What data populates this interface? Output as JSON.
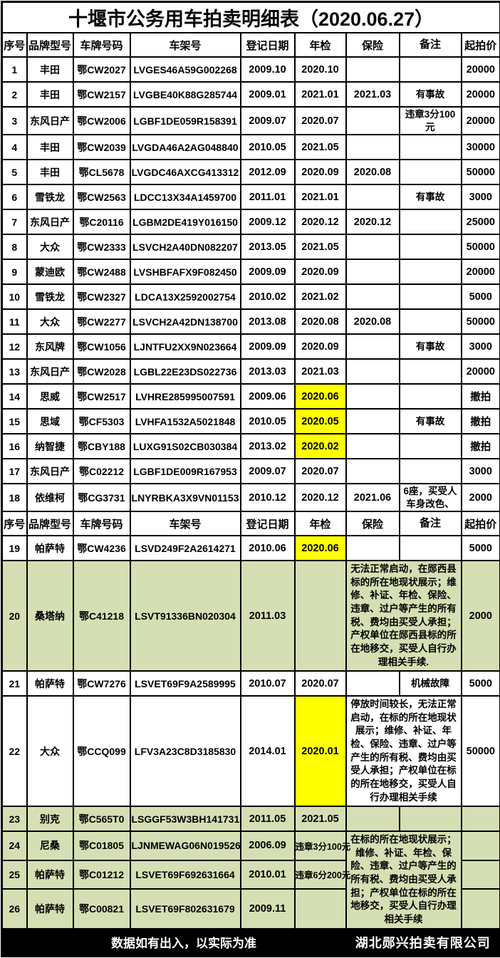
{
  "title": "十堰市公务用车拍卖明细表（2020.06.27）",
  "columns": [
    "序号",
    "品牌型号",
    "车牌号码",
    "车架号",
    "登记日期",
    "年检",
    "保险",
    "备注",
    "起拍价"
  ],
  "colors": {
    "highlight_yellow": "#ffff00",
    "row_green": "#d5dfb3",
    "footer_bg": "#000000",
    "footer_text": "#ffffff"
  },
  "rows": [
    {
      "no": "1",
      "brand": "丰田",
      "plate": "鄂CW2027",
      "vin": "LVGES46A59G002268",
      "reg": "2009.10",
      "insp": "2020.10",
      "ins": "",
      "note": "",
      "price": "20000"
    },
    {
      "no": "2",
      "brand": "丰田",
      "plate": "鄂CW2157",
      "vin": "LVGBE40K88G285744",
      "reg": "2009.01",
      "insp": "2021.01",
      "ins": "2021.03",
      "note": "有事故",
      "price": "20000"
    },
    {
      "no": "3",
      "brand": "东风日产",
      "plate": "鄂CW2006",
      "vin": "LGBF1DE059R158391",
      "reg": "2009.07",
      "insp": "2020.07",
      "ins": "",
      "note": "违章3分100元",
      "price": "20000"
    },
    {
      "no": "4",
      "brand": "丰田",
      "plate": "鄂CW2039",
      "vin": "LVGDA46A2AG048840",
      "reg": "2010.05",
      "insp": "2021.05",
      "ins": "",
      "note": "",
      "price": "30000"
    },
    {
      "no": "5",
      "brand": "丰田",
      "plate": "鄂CL5678",
      "vin": "LVGDC46AXCG413312",
      "reg": "2012.09",
      "insp": "2020.09",
      "ins": "2020.08",
      "note": "",
      "price": "50000"
    },
    {
      "no": "6",
      "brand": "雪铁龙",
      "plate": "鄂CW2563",
      "vin": "LDCC13X34A1459700",
      "reg": "2011.01",
      "insp": "2021.01",
      "ins": "",
      "note": "有事故",
      "price": "3000"
    },
    {
      "no": "7",
      "brand": "东风日产",
      "plate": "鄂C20116",
      "vin": "LGBM2DE419Y016150",
      "reg": "2009.12",
      "insp": "2020.12",
      "ins": "2020.12",
      "note": "",
      "price": "25000"
    },
    {
      "no": "8",
      "brand": "大众",
      "plate": "鄂CW2333",
      "vin": "LSVCH2A40DN082207",
      "reg": "2013.05",
      "insp": "2021.05",
      "ins": "",
      "note": "",
      "price": "50000"
    },
    {
      "no": "9",
      "brand": "蒙迪欧",
      "plate": "鄂CW2488",
      "vin": "LVSHBFAFX9F082450",
      "reg": "2009.09",
      "insp": "2020.09",
      "ins": "",
      "note": "",
      "price": "20000"
    },
    {
      "no": "10",
      "brand": "雪铁龙",
      "plate": "鄂CW2327",
      "vin": "LDCA13X2592002754",
      "reg": "2010.02",
      "insp": "2021.02",
      "ins": "",
      "note": "",
      "price": "5000"
    },
    {
      "no": "11",
      "brand": "大众",
      "plate": "鄂CW2277",
      "vin": "LSVCH2A42DN138700",
      "reg": "2013.08",
      "insp": "2020.08",
      "ins": "2020.08",
      "note": "",
      "price": "50000"
    },
    {
      "no": "12",
      "brand": "东风牌",
      "plate": "鄂CW1056",
      "vin": "LJNTFU2XX9N023664",
      "reg": "2009.09",
      "insp": "2020.09",
      "ins": "",
      "note": "有事故",
      "price": "3000"
    },
    {
      "no": "13",
      "brand": "东风日产",
      "plate": "鄂CW2028",
      "vin": "LGBL22E23DS022736",
      "reg": "2013.03",
      "insp": "2021.03",
      "ins": "",
      "note": "",
      "price": "20000"
    },
    {
      "no": "14",
      "brand": "思威",
      "plate": "鄂CW2517",
      "vin": "LVHRE285995007591",
      "reg": "2009.06",
      "insp": "2020.06",
      "insp_hl": true,
      "ins": "",
      "note": "",
      "price": "撤拍"
    },
    {
      "no": "15",
      "brand": "思域",
      "plate": "鄂CF5303",
      "vin": "LVHFA1532A5021848",
      "reg": "2010.05",
      "insp": "2020.05",
      "insp_hl": true,
      "ins": "",
      "note": "有事故",
      "price": "撤拍"
    },
    {
      "no": "16",
      "brand": "纳智捷",
      "plate": "鄂CBY188",
      "vin": "LUXG91S02CB030384",
      "reg": "2013.02",
      "insp": "2020.02",
      "insp_hl": true,
      "ins": "",
      "note": "",
      "price": "撤拍"
    },
    {
      "no": "17",
      "brand": "东风日产",
      "plate": "鄂C02212",
      "vin": "LGBF1DE009R167953",
      "reg": "2009.07",
      "insp": "2020.07",
      "ins": "",
      "note": "",
      "price": "3000"
    },
    {
      "no": "18",
      "brand": "依维柯",
      "plate": "鄂CG3731",
      "vin": "LNYRBKA3X9VN01153",
      "reg": "2010.12",
      "insp": "2020.12",
      "ins": "2021.06",
      "note": "6座，买受人车身改色、",
      "price": "2000"
    },
    {
      "header": true
    },
    {
      "no": "19",
      "brand": "帕萨特",
      "plate": "鄂CW4236",
      "vin": "LSVD249F2A2614271",
      "reg": "2010.06",
      "insp": "2020.06",
      "insp_hl": true,
      "ins": "",
      "note": "",
      "price": "5000"
    },
    {
      "no": "20",
      "brand": "桑塔纳",
      "plate": "鄂C41218",
      "vin": "LSVT91336BN020304",
      "reg": "2011.03",
      "insp": "",
      "green": true,
      "note_span": "merge",
      "note": "无法正常启动，在郧西县标的所在地现状展示；维修、补证、年检、保险、违章、过户等产生的所有税、费均由买受人承担；产权单位在郧西县标的所在地移交，买受人自行办理相关手续.",
      "price": "2000"
    },
    {
      "no": "21",
      "brand": "帕萨特",
      "plate": "鄂CW7276",
      "vin": "LSVET69F9A2589995",
      "reg": "2010.07",
      "insp": "2020.07",
      "ins": "",
      "note": "机械故障",
      "price": "5000"
    },
    {
      "no": "22",
      "brand": "大众",
      "plate": "鄂CCQ099",
      "vin": "LFV3A23C8D3185830",
      "reg": "2014.01",
      "insp": "2020.01",
      "insp_hl": true,
      "note_span": "merge",
      "note": "停放时间较长，无法正常启动，在标的所在地现状展示；维修、补证、年检、保险、违章、过户等产生的所有税、费均由买受人承担；产权单位在标的所在地移交，买受人自行办理相关手续",
      "price": "50000"
    },
    {
      "no": "23",
      "brand": "别克",
      "plate": "鄂C565T0",
      "vin": "LSGGF53W3BH141731",
      "reg": "2011.05",
      "insp": "2021.05",
      "green": true,
      "ins": "",
      "note": "",
      "price": ""
    },
    {
      "no": "24",
      "brand": "尼桑",
      "plate": "鄂C01805",
      "vin": "LJNMEWAG06N019526",
      "reg": "2006.09",
      "insp": "违章3分100元",
      "insp_ovf": true,
      "green": true,
      "note_span": "merge3",
      "note": "在标的所在地现状展示；维修、补证、年检、保险、违章、过户等产生的所有税、费均由买受人承担；产权单位在标的所在地移交，买受人自行办理相关手续",
      "price": ""
    },
    {
      "no": "25",
      "brand": "帕萨特",
      "plate": "鄂C01212",
      "vin": "LSVET69F692631664",
      "reg": "2010.01",
      "insp": "违章6分200元",
      "insp_ovf": true,
      "green": true,
      "note_span": "none",
      "price": ""
    },
    {
      "no": "26",
      "brand": "帕萨特",
      "plate": "鄂C00821",
      "vin": "LSVET69F802631679",
      "reg": "2009.11",
      "insp": "",
      "green": true,
      "note_span": "none",
      "price": ""
    }
  ],
  "footer": {
    "note": "数据如有出入，以实际为准",
    "company": "湖北郧兴拍卖有限公司"
  }
}
